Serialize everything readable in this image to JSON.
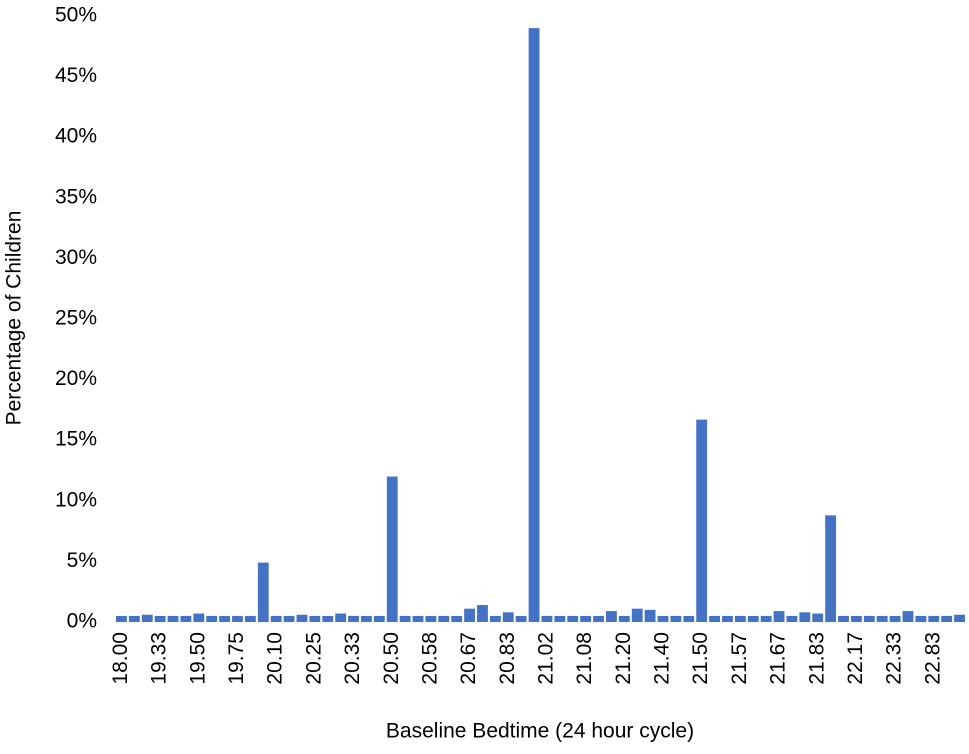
{
  "chart_data": {
    "type": "bar",
    "x_label": "Baseline Bedtime (24 hour cycle)",
    "y_label": "Percentage of Children",
    "color": "#4472c4",
    "categories": [
      "18.00",
      null,
      null,
      "19.33",
      null,
      null,
      "19.50",
      null,
      null,
      "19.75",
      null,
      null,
      "20.10",
      null,
      null,
      "20.25",
      null,
      null,
      "20.33",
      null,
      null,
      "20.50",
      null,
      null,
      "20.58",
      null,
      null,
      "20.67",
      null,
      null,
      "20.83",
      null,
      null,
      "21.02",
      null,
      null,
      "21.08",
      null,
      null,
      "21.20",
      null,
      null,
      "21.40",
      null,
      null,
      "21.50",
      null,
      null,
      "21.57",
      null,
      null,
      "21.67",
      null,
      null,
      "21.83",
      null,
      null,
      "22.17",
      null,
      null,
      "22.33",
      null,
      null,
      "22.83",
      null,
      null
    ],
    "values": [
      0.5,
      0.5,
      0.6,
      0.5,
      0.5,
      0.5,
      0.7,
      0.5,
      0.5,
      0.5,
      0.5,
      4.9,
      0.5,
      0.5,
      0.6,
      0.5,
      0.5,
      0.7,
      0.5,
      0.5,
      0.5,
      12,
      0.5,
      0.5,
      0.5,
      0.5,
      0.5,
      1.1,
      1.4,
      0.5,
      0.8,
      0.5,
      49,
      0.5,
      0.5,
      0.5,
      0.5,
      0.5,
      0.9,
      0.5,
      1.1,
      1.0,
      0.5,
      0.5,
      0.5,
      16.7,
      0.5,
      0.5,
      0.5,
      0.5,
      0.5,
      0.9,
      0.5,
      0.8,
      0.7,
      8.8,
      0.5,
      0.5,
      0.5,
      0.5,
      0.5,
      0.9,
      0.5,
      0.5,
      0.5,
      0.6
    ],
    "ylim": [
      0,
      50
    ],
    "yticks": [
      {
        "value": 0,
        "label": "0%"
      },
      {
        "value": 5,
        "label": "5%"
      },
      {
        "value": 10,
        "label": "10%"
      },
      {
        "value": 15,
        "label": "15%"
      },
      {
        "value": 20,
        "label": "20%"
      },
      {
        "value": 25,
        "label": "25%"
      },
      {
        "value": 30,
        "label": "30%"
      },
      {
        "value": 35,
        "label": "35%"
      },
      {
        "value": 40,
        "label": "40%"
      },
      {
        "value": 45,
        "label": "45%"
      },
      {
        "value": 50,
        "label": "50%"
      }
    ],
    "grid": false
  }
}
